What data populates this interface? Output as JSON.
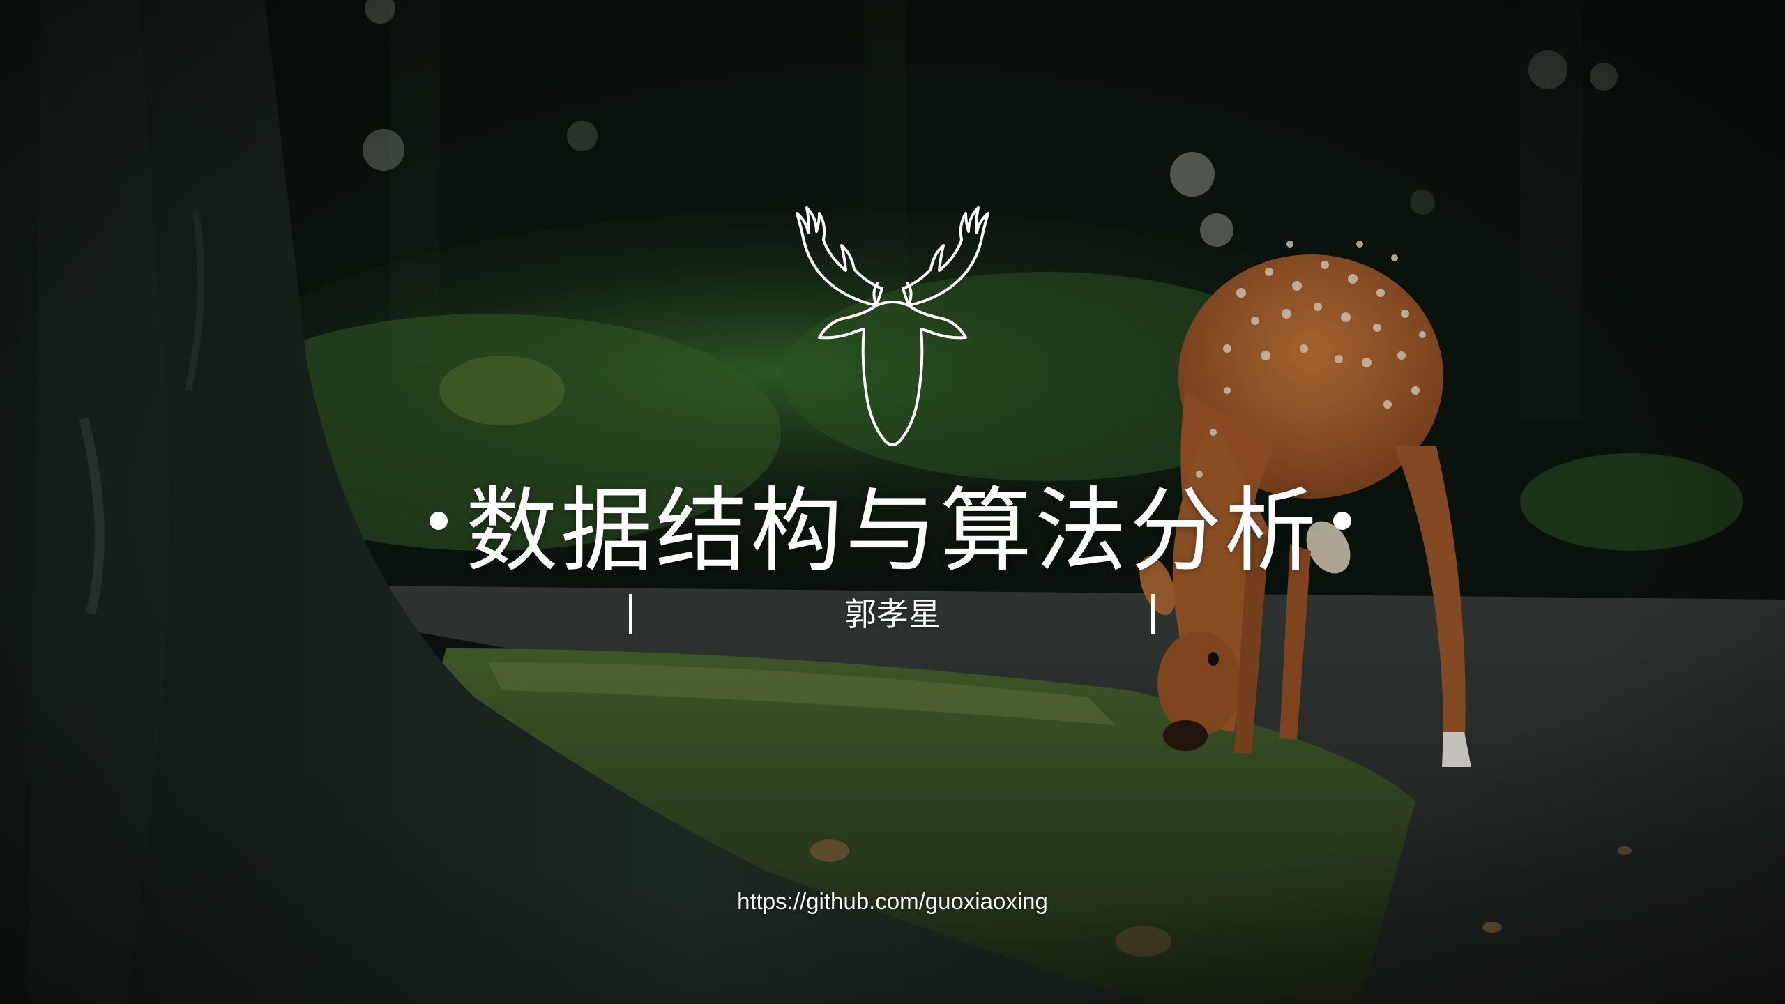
{
  "slide": {
    "title": "数据结构与算法分析",
    "author": "郭孝星",
    "url": "https://github.com/guoxiaoxing"
  },
  "logo": {
    "icon": "deer-head-icon",
    "color": "#ffffff"
  },
  "background": {
    "subject": "photo",
    "palette": {
      "forest_dark": "#0e1a12",
      "foliage": "#2f5a2a",
      "road": "#2b2f2e",
      "grass": "#3c5a2a",
      "deer": "#b5652e"
    }
  }
}
